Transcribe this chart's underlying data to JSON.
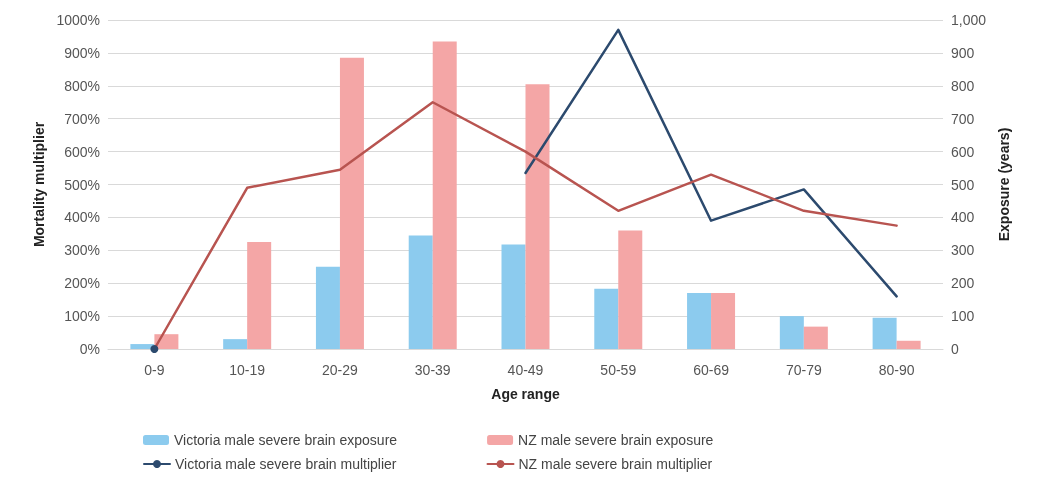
{
  "chart_data": {
    "type": "bar",
    "xlabel": "Age range",
    "ylabel": "Mortality multiplier",
    "y2label": "Exposure (years)",
    "categories": [
      "0-9",
      "10-19",
      "20-29",
      "30-39",
      "40-49",
      "50-59",
      "60-69",
      "70-79",
      "80-90"
    ],
    "series": [
      {
        "name": "Victoria male severe brain exposure",
        "axis": "y2",
        "color": "#8ccbee",
        "values": [
          15,
          30,
          250,
          345,
          318,
          183,
          170,
          100,
          95
        ]
      },
      {
        "name": "NZ male severe brain exposure",
        "axis": "y2",
        "color": "#f4a6a6",
        "values": [
          45,
          325,
          885,
          935,
          805,
          360,
          170,
          68,
          25
        ]
      },
      {
        "name": "Victoria male severe brain multiplier",
        "type": "line",
        "color": "#2c4a6e",
        "values": [
          0,
          null,
          null,
          null,
          535,
          970,
          390,
          485,
          160
        ]
      },
      {
        "name": "NZ male severe brain multiplier",
        "type": "line",
        "color": "#b85450",
        "values": [
          0,
          490,
          545,
          750,
          600,
          420,
          530,
          420,
          375
        ]
      }
    ],
    "ylim": [
      0,
      1000
    ],
    "yticks": [
      {
        "value": 0,
        "label": "0%"
      },
      {
        "value": 100,
        "label": "100%"
      },
      {
        "value": 200,
        "label": "200%"
      },
      {
        "value": 300,
        "label": "300%"
      },
      {
        "value": 400,
        "label": "400%"
      },
      {
        "value": 500,
        "label": "500%"
      },
      {
        "value": 600,
        "label": "600%"
      },
      {
        "value": 700,
        "label": "700%"
      },
      {
        "value": 800,
        "label": "800%"
      },
      {
        "value": 900,
        "label": "900%"
      },
      {
        "value": 1000,
        "label": "1000%"
      }
    ],
    "y2lim": [
      0,
      1000
    ],
    "y2ticks": [
      0,
      100,
      200,
      300,
      400,
      500,
      600,
      700,
      800,
      900,
      {
        "value": 1000,
        "label": "1,000"
      }
    ],
    "grid": "y",
    "legend": "bottom",
    "marker": "none",
    "line_style": "solid"
  }
}
